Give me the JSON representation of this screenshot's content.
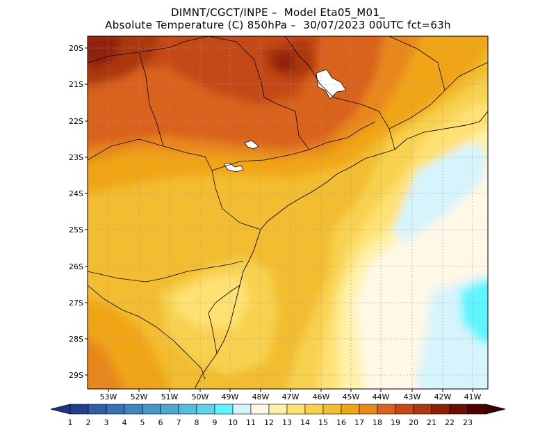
{
  "header": {
    "line1": "DIMNT/CGCT/INPE –  Model Eta05_M01_",
    "line2": "Absolute Temperature (C) 850hPa –  30/07/2023 00UTC fct=63h"
  },
  "axes": {
    "lat_labels": [
      "20S",
      "21S",
      "22S",
      "23S",
      "24S",
      "25S",
      "26S",
      "27S",
      "28S",
      "29S"
    ],
    "lon_labels": [
      "53W",
      "52W",
      "51W",
      "50W",
      "49W",
      "48W",
      "47W",
      "46W",
      "45W",
      "44W",
      "43W",
      "42W",
      "41W"
    ]
  },
  "colorbar": {
    "labels": [
      "1",
      "2",
      "3",
      "4",
      "5",
      "6",
      "7",
      "8",
      "9",
      "10",
      "11",
      "12",
      "13",
      "14",
      "15",
      "16",
      "17",
      "18",
      "19",
      "20",
      "21",
      "22",
      "23"
    ],
    "colors": [
      "#253f8f",
      "#2f5fa7",
      "#3773b4",
      "#3d86bf",
      "#4597c8",
      "#4ea9d2",
      "#52bfe0",
      "#5cd3ea",
      "#5ef5ff",
      "#d6f4fb",
      "#fff8e6",
      "#fff2a8",
      "#ffe173",
      "#f8d150",
      "#f2bd30",
      "#f0a512",
      "#e8881a",
      "#d9621d",
      "#c54913",
      "#ac3810",
      "#8f2007",
      "#6c0e00",
      "#4d0000"
    ]
  }
}
